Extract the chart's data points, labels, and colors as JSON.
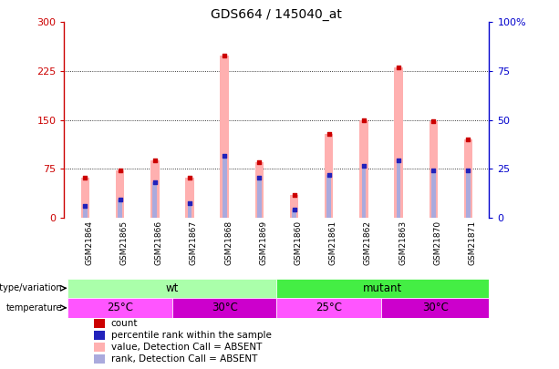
{
  "title": "GDS664 / 145040_at",
  "samples": [
    "GSM21864",
    "GSM21865",
    "GSM21866",
    "GSM21867",
    "GSM21868",
    "GSM21869",
    "GSM21860",
    "GSM21861",
    "GSM21862",
    "GSM21863",
    "GSM21870",
    "GSM21871"
  ],
  "pink_bars": [
    62,
    72,
    88,
    62,
    248,
    85,
    35,
    128,
    150,
    230,
    148,
    120
  ],
  "blue_rank": [
    18,
    28,
    55,
    22,
    95,
    62,
    12,
    65,
    80,
    88,
    72,
    72
  ],
  "ylim_left": [
    0,
    300
  ],
  "ylim_right": [
    0,
    100
  ],
  "yticks_left": [
    0,
    75,
    150,
    225,
    300
  ],
  "yticks_right": [
    0,
    25,
    50,
    75,
    100
  ],
  "ytick_labels_left": [
    "0",
    "75",
    "150",
    "225",
    "300"
  ],
  "ytick_labels_right": [
    "0",
    "25",
    "50",
    "75",
    "100%"
  ],
  "left_axis_color": "#cc0000",
  "right_axis_color": "#0000cc",
  "bar_pink_color": "#ffb0b0",
  "bar_blue_color": "#aaaadd",
  "dot_red_color": "#cc0000",
  "dot_blue_color": "#2222bb",
  "bg_color": "#ffffff",
  "genotype_wt_color": "#aaffaa",
  "genotype_mut_color": "#44ee44",
  "temp_25_color": "#ff55ff",
  "temp_30_color": "#cc00cc",
  "label_row_color": "#cccccc",
  "legend_items": [
    {
      "label": "count",
      "color": "#cc0000"
    },
    {
      "label": "percentile rank within the sample",
      "color": "#2222bb"
    },
    {
      "label": "value, Detection Call = ABSENT",
      "color": "#ffb0b0"
    },
    {
      "label": "rank, Detection Call = ABSENT",
      "color": "#aaaadd"
    }
  ]
}
